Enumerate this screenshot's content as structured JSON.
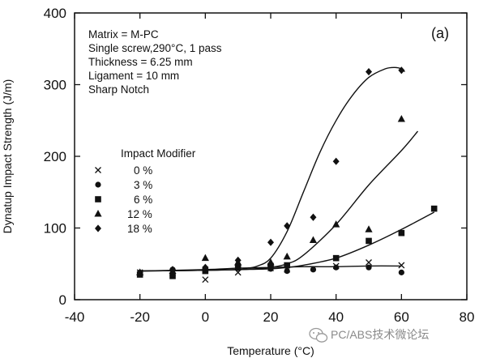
{
  "chart_data": {
    "type": "scatter",
    "panel_label": "(a)",
    "xlabel": "Temperature (°C)",
    "ylabel": "Dynatup Impact Strength (J/m)",
    "xlim": [
      -40,
      80
    ],
    "ylim": [
      0,
      400
    ],
    "xticks": [
      -40,
      -20,
      0,
      20,
      40,
      60,
      80
    ],
    "yticks": [
      0,
      100,
      200,
      300,
      400
    ],
    "grid": false,
    "notes": [
      "Matrix = M-PC",
      "Single screw,290°C, 1 pass",
      "Thickness = 6.25 mm",
      "Ligament = 10 mm",
      "Sharp Notch"
    ],
    "legend_title": "Impact Modifier",
    "legend_placement": "left",
    "series": [
      {
        "name": "0 %",
        "marker": "x",
        "x": [
          -20,
          -10,
          0,
          0,
          10,
          20,
          25,
          40,
          50,
          60
        ],
        "y": [
          38,
          37,
          28,
          42,
          38,
          44,
          42,
          47,
          52,
          48
        ]
      },
      {
        "name": "3 %",
        "marker": "circle",
        "x": [
          -20,
          -10,
          0,
          10,
          20,
          25,
          33,
          40,
          50,
          60
        ],
        "y": [
          38,
          42,
          42,
          44,
          43,
          40,
          42,
          45,
          45,
          38
        ]
      },
      {
        "name": "6 %",
        "marker": "square",
        "x": [
          -20,
          -10,
          0,
          10,
          20,
          25,
          40,
          50,
          60,
          70
        ],
        "y": [
          35,
          33,
          40,
          45,
          47,
          48,
          58,
          82,
          93,
          127
        ]
      },
      {
        "name": "12 %",
        "marker": "triangle",
        "x": [
          -20,
          -10,
          0,
          10,
          20,
          25,
          33,
          40,
          50,
          60
        ],
        "y": [
          38,
          40,
          58,
          52,
          52,
          60,
          83,
          105,
          98,
          252
        ]
      },
      {
        "name": "18 %",
        "marker": "diamond",
        "x": [
          -10,
          0,
          10,
          20,
          25,
          33,
          40,
          50,
          60
        ],
        "y": [
          42,
          45,
          55,
          80,
          103,
          115,
          193,
          318,
          320
        ]
      }
    ],
    "curves": [
      {
        "x": [
          -20,
          0,
          10,
          20,
          30,
          40,
          50,
          60
        ],
        "y": [
          40,
          42,
          44,
          45,
          46,
          46,
          47,
          47
        ]
      },
      {
        "x": [
          -20,
          0,
          10,
          20,
          25,
          30,
          40,
          50,
          60,
          70
        ],
        "y": [
          40,
          41,
          42,
          43,
          45,
          48,
          58,
          76,
          98,
          122
        ]
      },
      {
        "x": [
          -20,
          0,
          10,
          15,
          20,
          25,
          30,
          40,
          50,
          60,
          65
        ],
        "y": [
          40,
          41,
          42,
          43,
          45,
          50,
          62,
          105,
          160,
          208,
          235
        ]
      },
      {
        "x": [
          -20,
          0,
          10,
          13,
          16,
          20,
          25,
          30,
          35,
          40,
          45,
          50,
          55,
          58,
          60,
          61
        ],
        "y": [
          40,
          41,
          42,
          44,
          47,
          58,
          95,
          150,
          205,
          250,
          285,
          310,
          322,
          324,
          322,
          318
        ]
      }
    ]
  },
  "watermark": "PC/ABS技术微论坛"
}
